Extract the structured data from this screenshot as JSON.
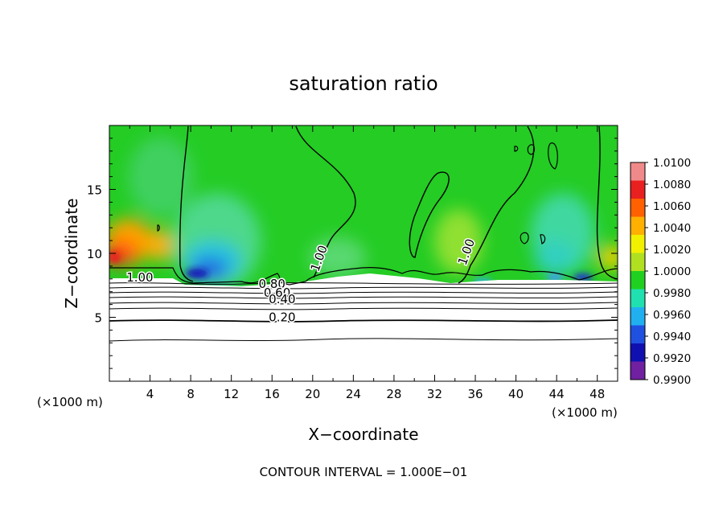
{
  "chart_data": {
    "type": "heatmap",
    "title": "saturation ratio",
    "xlabel": "X−coordinate",
    "ylabel": "Z−coordinate",
    "x_unit": "(×1000 m)",
    "y_unit": "(×1000 m)",
    "footer": "CONTOUR INTERVAL = 1.000E−01",
    "xlim": [
      0,
      50
    ],
    "ylim": [
      0,
      20
    ],
    "x_ticks": [
      4,
      8,
      12,
      16,
      20,
      24,
      28,
      32,
      36,
      40,
      44,
      48
    ],
    "y_ticks": [
      5,
      10,
      15
    ],
    "colorbar": {
      "range": [
        0.99,
        1.01
      ],
      "ticks": [
        "1.0100",
        "1.0080",
        "1.0060",
        "1.0040",
        "1.0020",
        "1.0000",
        "0.9980",
        "0.9960",
        "0.9940",
        "0.9920",
        "0.9900"
      ],
      "colors": [
        "#f08a8a",
        "#e82020",
        "#ff6000",
        "#ffb000",
        "#f0f000",
        "#b0e020",
        "#20d020",
        "#20e0b0",
        "#20b0f0",
        "#2050e0",
        "#1010b0",
        "#7020a0"
      ]
    },
    "contour_labels": [
      {
        "text": "1.00",
        "x": 3.0,
        "z": 7.8
      },
      {
        "text": "0.80",
        "x": 16.0,
        "z": 7.3
      },
      {
        "text": "0.60",
        "x": 16.5,
        "z": 6.6
      },
      {
        "text": "0.40",
        "x": 17.0,
        "z": 6.1
      },
      {
        "text": "0.20",
        "x": 17.0,
        "z": 4.7
      },
      {
        "text": "1.00",
        "x": 21.0,
        "z": 9.5
      },
      {
        "text": "1.00",
        "x": 35.5,
        "z": 10.0
      }
    ],
    "low_level_contours_z": [
      3.3,
      4.8,
      5.8,
      6.2,
      6.6,
      7.0,
      7.4,
      7.8
    ],
    "cloud_base_z": 7.9
  }
}
